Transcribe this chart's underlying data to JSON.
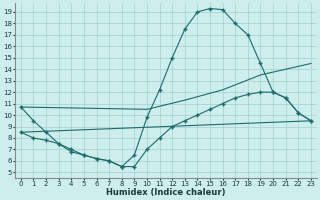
{
  "xlabel": "Humidex (Indice chaleur)",
  "xlim": [
    -0.5,
    23.5
  ],
  "ylim": [
    4.5,
    19.8
  ],
  "xticks": [
    0,
    1,
    2,
    3,
    4,
    5,
    6,
    7,
    8,
    9,
    10,
    11,
    12,
    13,
    14,
    15,
    16,
    17,
    18,
    19,
    20,
    21,
    22,
    23
  ],
  "yticks": [
    5,
    6,
    7,
    8,
    9,
    10,
    11,
    12,
    13,
    14,
    15,
    16,
    17,
    18,
    19
  ],
  "bg_color": "#ceeeed",
  "grid_color": "#a8d5d4",
  "line_color": "#1a6b6b",
  "curve1_x": [
    0,
    1,
    2,
    3,
    4,
    5,
    6,
    7,
    8,
    9,
    10,
    11,
    12,
    13,
    14,
    15,
    16,
    17,
    18,
    19,
    20,
    21,
    22,
    23
  ],
  "curve1_y": [
    10.7,
    9.5,
    8.5,
    7.5,
    7.0,
    6.5,
    6.2,
    6.0,
    5.5,
    6.5,
    9.8,
    12.2,
    15.0,
    17.5,
    19.0,
    19.3,
    19.2,
    18.0,
    17.0,
    14.5,
    12.0,
    11.5,
    10.2,
    9.5
  ],
  "curve2_x": [
    0,
    10,
    13,
    16,
    19,
    23
  ],
  "curve2_y": [
    10.7,
    10.5,
    11.3,
    12.2,
    13.5,
    14.5
  ],
  "line3_x": [
    0,
    23
  ],
  "line3_y": [
    8.5,
    9.5
  ],
  "curve4_x": [
    0,
    1,
    2,
    3,
    4,
    5,
    6,
    7,
    8,
    9,
    10,
    11,
    12,
    13,
    14,
    15,
    16,
    17,
    18,
    19,
    20,
    21,
    22,
    23
  ],
  "curve4_y": [
    8.5,
    8.0,
    7.8,
    7.5,
    6.8,
    6.5,
    6.2,
    6.0,
    5.5,
    5.5,
    7.0,
    8.0,
    9.0,
    9.5,
    10.0,
    10.5,
    11.0,
    11.5,
    11.8,
    12.0,
    12.0,
    11.5,
    10.2,
    9.5
  ]
}
